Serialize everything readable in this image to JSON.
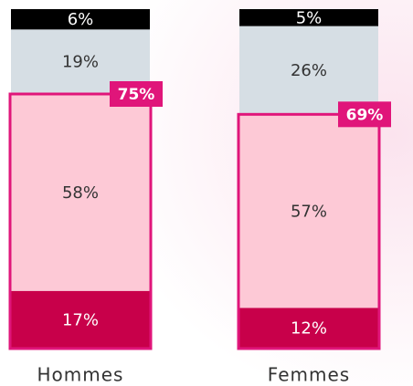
{
  "chart_data": {
    "type": "stacked-bar",
    "categories": [
      "Hommes",
      "Femmes"
    ],
    "series": [
      {
        "color": "#c8004a",
        "values": [
          17,
          12
        ],
        "value_labels": [
          "17%",
          "12%"
        ]
      },
      {
        "color": "#fdc9d6",
        "values": [
          58,
          57
        ],
        "value_labels": [
          "58%",
          "57%"
        ]
      },
      {
        "color": "#d6dee4",
        "values": [
          19,
          26
        ],
        "value_labels": [
          "19%",
          "26%"
        ]
      },
      {
        "color": "#000000",
        "values": [
          6,
          5
        ],
        "value_labels": [
          "6%",
          "5%"
        ]
      }
    ],
    "annotations": [
      {
        "value": 75,
        "label": "75%"
      },
      {
        "value": 69,
        "label": "69%"
      }
    ],
    "highlight_color": "#e0157a"
  }
}
